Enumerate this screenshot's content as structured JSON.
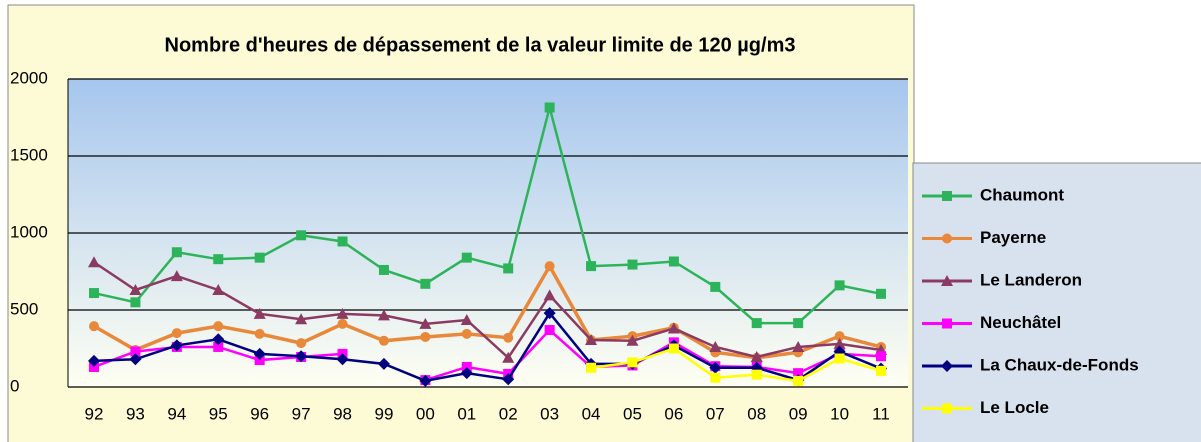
{
  "chart_data": {
    "type": "line",
    "title": "Nombre d'heures de dépassement de la valeur limite de 120 µg/m3",
    "categories": [
      "92",
      "93",
      "94",
      "95",
      "96",
      "97",
      "98",
      "99",
      "00",
      "01",
      "02",
      "03",
      "04",
      "05",
      "06",
      "07",
      "08",
      "09",
      "10",
      "11"
    ],
    "ylim": [
      0,
      2000
    ],
    "yticks": [
      0,
      500,
      1000,
      1500,
      2000
    ],
    "grid": true,
    "series": [
      {
        "name": "Chaumont",
        "color": "#2db45a",
        "marker": "square",
        "values": [
          610,
          550,
          875,
          830,
          840,
          985,
          945,
          760,
          670,
          840,
          770,
          1815,
          785,
          795,
          815,
          650,
          415,
          415,
          660,
          605
        ]
      },
      {
        "name": "Payerne",
        "color": "#e8883a",
        "marker": "circle",
        "values": [
          395,
          240,
          350,
          395,
          345,
          285,
          410,
          300,
          325,
          345,
          320,
          785,
          305,
          330,
          385,
          225,
          190,
          225,
          330,
          260
        ]
      },
      {
        "name": "Le Landeron",
        "color": "#8b3a62",
        "marker": "triangle",
        "values": [
          810,
          630,
          720,
          630,
          475,
          440,
          475,
          465,
          410,
          435,
          190,
          595,
          305,
          300,
          380,
          260,
          195,
          260,
          280,
          240
        ]
      },
      {
        "name": "Neuchâtel",
        "color": "#ff00ff",
        "marker": "square",
        "values": [
          130,
          230,
          260,
          260,
          175,
          195,
          215,
          null,
          45,
          130,
          85,
          370,
          130,
          140,
          290,
          135,
          130,
          90,
          215,
          200
        ]
      },
      {
        "name": "La Chaux-de-Fonds",
        "color": "#000080",
        "marker": "diamond",
        "values": [
          170,
          180,
          270,
          310,
          215,
          200,
          180,
          150,
          40,
          90,
          50,
          480,
          150,
          150,
          270,
          125,
          125,
          45,
          230,
          120
        ]
      },
      {
        "name": "Le Locle",
        "color": "#ffff00",
        "marker": "square",
        "values": [
          null,
          null,
          null,
          null,
          null,
          null,
          null,
          null,
          null,
          null,
          null,
          null,
          125,
          160,
          250,
          60,
          80,
          40,
          185,
          105
        ]
      }
    ]
  }
}
